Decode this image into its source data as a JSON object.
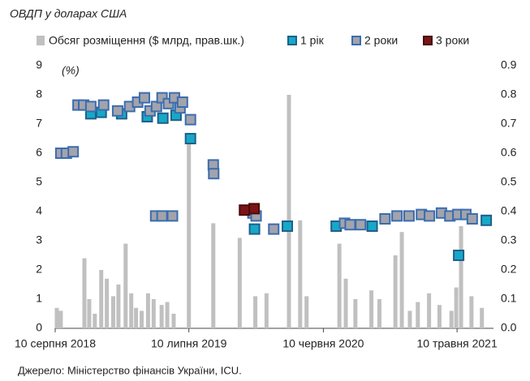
{
  "chart_data": {
    "type": "scatter",
    "title": "ОВДП у доларах США",
    "y_axis_label": "(%)",
    "source": "Джерело: Міністерство фінансів України,  ICU.",
    "xlim": [
      "2018-08-10",
      "2021-08-09"
    ],
    "xticks": [
      {
        "value": "2018-08-10",
        "label": "10 серпня 2018"
      },
      {
        "value": "2019-07-10",
        "label": "10 липня 2019"
      },
      {
        "value": "2020-06-10",
        "label": "10 червня 2020"
      },
      {
        "value": "2021-05-10",
        "label": "10 травня 2021"
      }
    ],
    "ylim": [
      0,
      9
    ],
    "yticks": [
      0,
      1,
      2,
      3,
      4,
      5,
      6,
      7,
      8,
      9
    ],
    "y2lim": [
      0,
      0.9
    ],
    "y2ticks": [
      {
        "value": 0,
        "label": "0.0"
      },
      0.1,
      0.2,
      0.3,
      0.4,
      0.5,
      0.6,
      0.7,
      0.8,
      0.9
    ],
    "series": [
      {
        "name": "Обсяг розміщення ($ млрд, прав.шк.)",
        "type": "bar",
        "axis": "y2",
        "color": "#c0c0c0",
        "x": [
          "2018-08-14",
          "2018-08-24",
          "2018-10-22",
          "2018-11-03",
          "2018-11-17",
          "2018-12-03",
          "2018-12-17",
          "2019-01-02",
          "2019-01-15",
          "2019-02-02",
          "2019-02-16",
          "2019-02-28",
          "2019-03-14",
          "2019-03-30",
          "2019-04-13",
          "2019-05-03",
          "2019-05-17",
          "2019-06-02",
          "2019-07-10",
          "2019-09-09",
          "2019-11-14",
          "2019-12-23",
          "2020-01-20",
          "2020-03-16",
          "2020-04-13",
          "2020-04-29",
          "2020-07-20",
          "2020-08-05",
          "2020-08-29",
          "2020-10-08",
          "2020-10-28",
          "2020-12-07",
          "2020-12-23",
          "2021-01-12",
          "2021-02-01",
          "2021-03-01",
          "2021-03-27",
          "2021-04-26",
          "2021-05-08",
          "2021-05-20",
          "2021-06-15",
          "2021-07-11"
        ],
        "values": [
          0.07,
          0.06,
          0.24,
          0.1,
          0.05,
          0.2,
          0.17,
          0.11,
          0.15,
          0.29,
          0.12,
          0.07,
          0.06,
          0.12,
          0.1,
          0.08,
          0.09,
          0.05,
          0.66,
          0.36,
          0.31,
          0.11,
          0.12,
          0.8,
          0.37,
          0.11,
          0.29,
          0.17,
          0.1,
          0.13,
          0.1,
          0.25,
          0.33,
          0.06,
          0.09,
          0.12,
          0.08,
          0.06,
          0.14,
          0.35,
          0.11,
          0.07
        ]
      },
      {
        "name": "1 рік",
        "color": "#17a8c8",
        "edge": "#1f5f8a",
        "x": [
          "2018-11-07",
          "2018-12-03",
          "2019-01-23",
          "2019-03-28",
          "2019-05-06",
          "2019-06-08",
          "2019-07-14",
          "2019-12-21",
          "2020-03-12",
          "2020-07-12",
          "2020-10-10",
          "2021-05-14",
          "2021-07-22"
        ],
        "values": [
          7.35,
          7.4,
          7.35,
          7.25,
          7.2,
          7.3,
          6.5,
          3.4,
          3.5,
          3.5,
          3.5,
          2.5,
          3.7
        ]
      },
      {
        "name": "2 роки",
        "color": "#a3a3ab",
        "edge": "#3a6db0",
        "x": [
          "2018-08-24",
          "2018-09-07",
          "2018-09-24",
          "2018-10-06",
          "2018-10-20",
          "2018-11-07",
          "2018-12-09",
          "2019-01-13",
          "2019-02-12",
          "2019-03-04",
          "2019-03-21",
          "2019-04-04",
          "2019-04-20",
          "2019-05-04",
          "2019-05-20",
          "2019-06-04",
          "2019-06-18",
          "2019-06-24",
          "2019-07-14",
          "2019-04-18",
          "2019-05-04",
          "2019-05-30",
          "2019-09-09",
          "2019-09-10",
          "2019-12-17",
          "2019-12-25",
          "2020-02-07",
          "2020-08-02",
          "2020-08-16",
          "2020-09-11",
          "2020-11-11",
          "2020-12-11",
          "2021-01-10",
          "2021-02-10",
          "2021-03-02",
          "2021-04-01",
          "2021-04-22",
          "2021-05-12",
          "2021-06-01",
          "2021-06-17"
        ],
        "values": [
          6.0,
          6.0,
          6.05,
          7.65,
          7.65,
          7.6,
          7.65,
          7.45,
          7.6,
          7.75,
          7.9,
          7.45,
          7.6,
          7.9,
          7.7,
          7.9,
          7.55,
          7.75,
          7.15,
          3.85,
          3.85,
          3.85,
          5.6,
          5.3,
          3.95,
          3.85,
          3.4,
          3.6,
          3.55,
          3.55,
          3.75,
          3.85,
          3.85,
          3.9,
          3.85,
          3.95,
          3.85,
          3.9,
          3.9,
          3.75
        ]
      },
      {
        "name": "3 роки",
        "color": "#7b1416",
        "edge": "#4a0a0a",
        "x": [
          "2019-11-26",
          "2019-12-20"
        ],
        "values": [
          4.05,
          4.1
        ]
      }
    ]
  }
}
